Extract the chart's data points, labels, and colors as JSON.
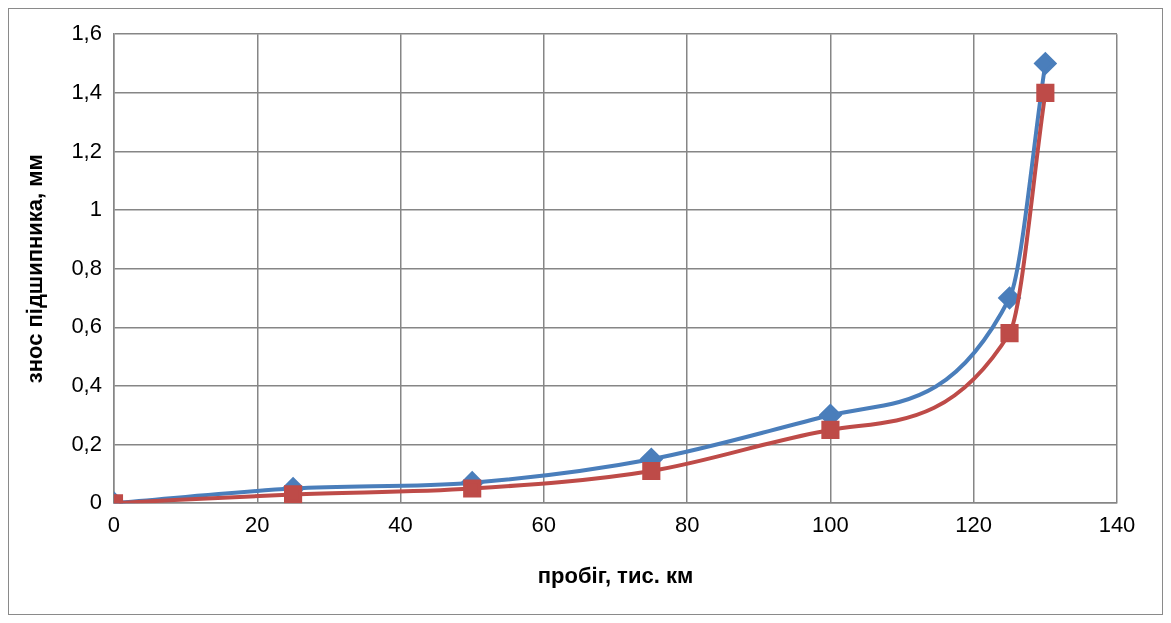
{
  "chart_data": {
    "type": "line",
    "xlabel": "пробіг, тис. км",
    "ylabel": "знос підшипника, мм",
    "x": [
      0,
      25,
      50,
      75,
      100,
      125,
      130
    ],
    "series": [
      {
        "color": "#4a7ebb",
        "marker": "diamond",
        "values": [
          0,
          0.05,
          0.07,
          0.15,
          0.3,
          0.7,
          1.5
        ]
      },
      {
        "color": "#be4b48",
        "marker": "square",
        "values": [
          0,
          0.03,
          0.05,
          0.11,
          0.25,
          0.58,
          1.4
        ]
      }
    ],
    "xlim": [
      0,
      140
    ],
    "xticks": [
      0,
      20,
      40,
      60,
      80,
      100,
      120,
      140
    ],
    "ylim": [
      0,
      1.6
    ],
    "yticks": [
      {
        "value": 0,
        "label": "0"
      },
      {
        "value": 0.2,
        "label": "0,2"
      },
      {
        "value": 0.4,
        "label": "0,4"
      },
      {
        "value": 0.6,
        "label": "0,6"
      },
      {
        "value": 0.8,
        "label": "0,8"
      },
      {
        "value": 1,
        "label": "1"
      },
      {
        "value": 1.2,
        "label": "1,2"
      },
      {
        "value": 1.4,
        "label": "1,4"
      },
      {
        "value": 1.6,
        "label": "1,6"
      }
    ],
    "grid": true,
    "legend": false,
    "line_style": "solid"
  }
}
